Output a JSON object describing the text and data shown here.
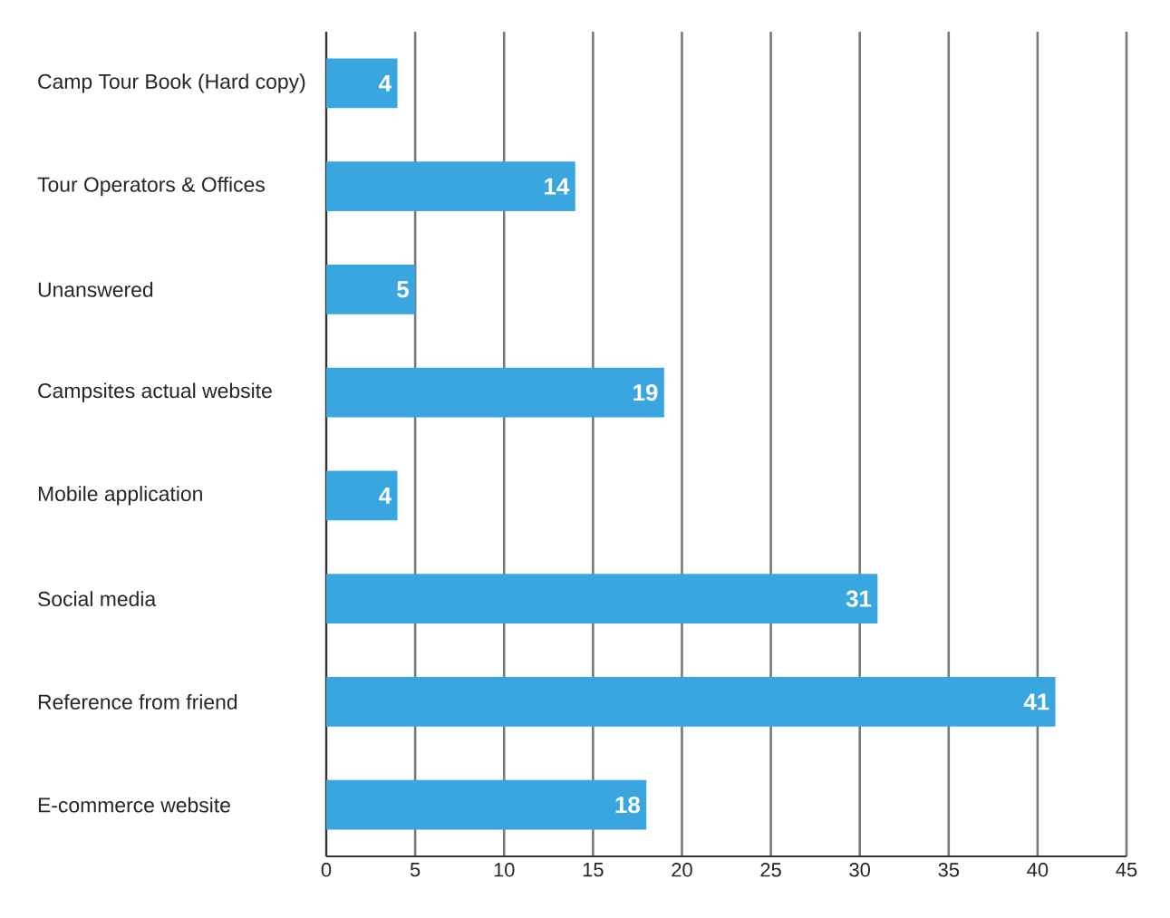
{
  "chart_data": {
    "type": "bar",
    "orientation": "horizontal",
    "categories": [
      "Camp Tour Book (Hard copy)",
      "Tour Operators & Offices",
      "Unanswered",
      "Campsites actual website",
      "Mobile application",
      "Social media",
      "Reference from friend",
      "E-commerce website"
    ],
    "values": [
      4,
      14,
      5,
      19,
      4,
      31,
      41,
      18
    ],
    "color": "#3aa6e0",
    "xlim": [
      0,
      45
    ],
    "xticks": [
      0,
      5,
      10,
      15,
      20,
      25,
      30,
      35,
      40,
      45
    ],
    "grid": "x",
    "data_labels": true
  }
}
